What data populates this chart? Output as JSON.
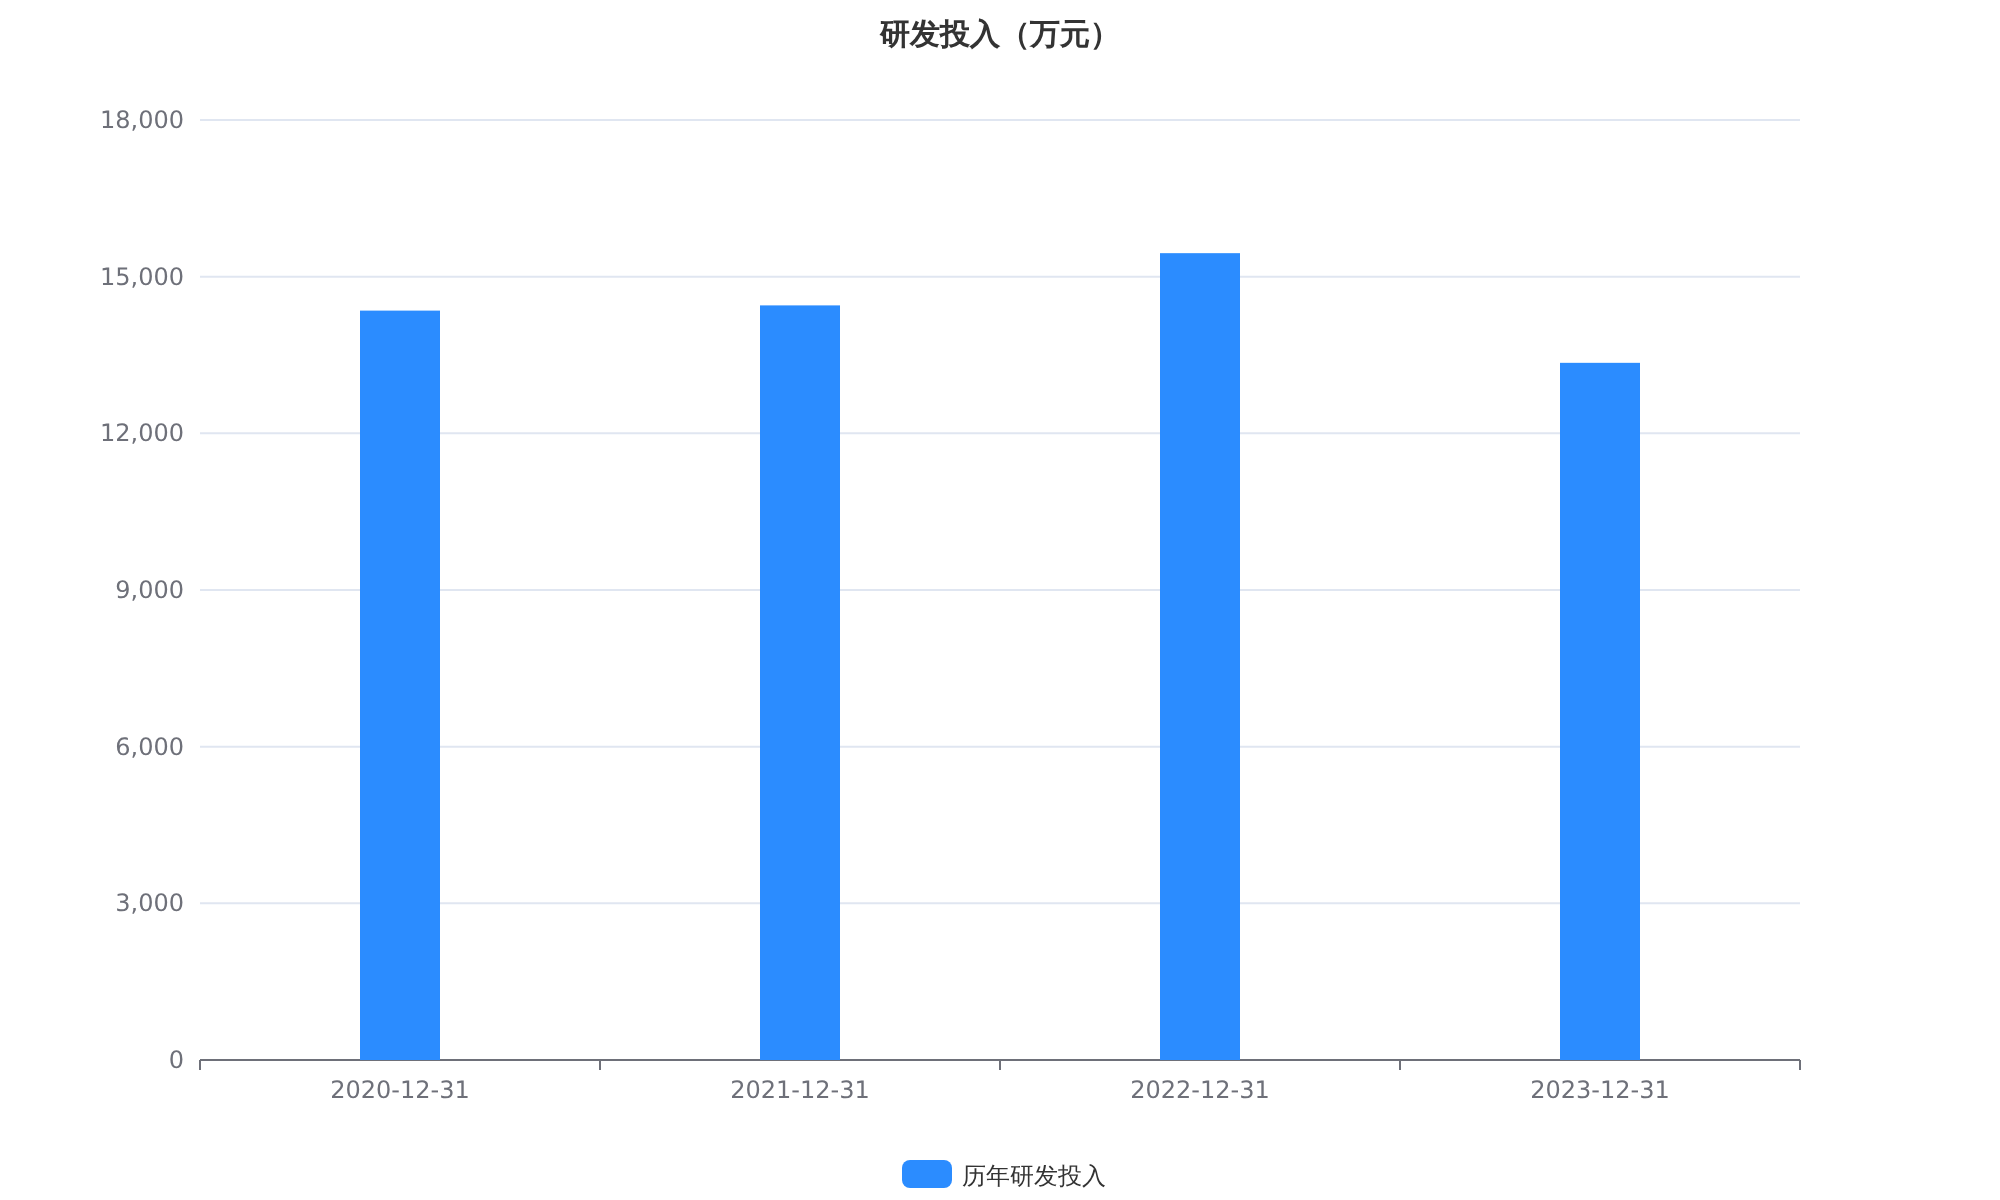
{
  "chart_data": {
    "type": "bar",
    "title": "研发投入（万元）",
    "categories": [
      "2020-12-31",
      "2021-12-31",
      "2022-12-31",
      "2023-12-31"
    ],
    "series": [
      {
        "name": "历年研发投入",
        "color": "#2b8cff",
        "values": [
          14350,
          14450,
          15450,
          13350
        ]
      }
    ],
    "ylim": [
      0,
      18000
    ],
    "yticks": [
      {
        "value": 0,
        "label": "0"
      },
      {
        "value": 3000,
        "label": "3,000"
      },
      {
        "value": 6000,
        "label": "6,000"
      },
      {
        "value": 9000,
        "label": "9,000"
      },
      {
        "value": 12000,
        "label": "12,000"
      },
      {
        "value": 15000,
        "label": "15,000"
      },
      {
        "value": 18000,
        "label": "18,000"
      }
    ],
    "grid": "y",
    "legend": "bottom"
  }
}
